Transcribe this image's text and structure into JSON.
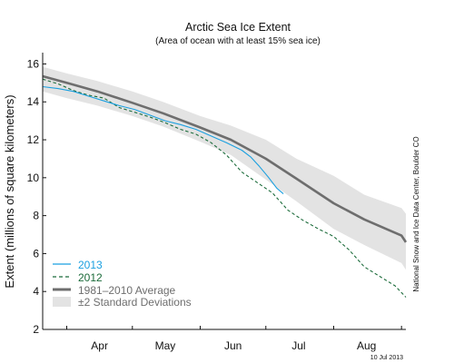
{
  "chart_data": {
    "type": "line",
    "title": "Arctic Sea Ice Extent",
    "subtitle": "(Area of ocean with at least 15% sea ice)",
    "ylabel": "Extent (millions of square kilometers)",
    "xlabel": "",
    "ylim": [
      2,
      16.5
    ],
    "yticks": [
      2,
      4,
      6,
      8,
      10,
      12,
      14,
      16
    ],
    "xlim": [
      "2013-03-21",
      "2013-09-03"
    ],
    "xtick_labels": [
      {
        "label": "Apr",
        "date": "2013-04-16"
      },
      {
        "label": "May",
        "date": "2013-05-16"
      },
      {
        "label": "Jun",
        "date": "2013-06-16"
      },
      {
        "label": "Jul",
        "date": "2013-07-16"
      },
      {
        "label": "Aug",
        "date": "2013-08-16"
      }
    ],
    "month_boundaries": [
      "2013-04-01",
      "2013-05-01",
      "2013-06-01",
      "2013-07-01",
      "2013-08-01",
      "2013-09-01"
    ],
    "series": [
      {
        "name": "2013",
        "color": "#1ba0e0",
        "style": "solid",
        "x": [
          "2013-03-21",
          "2013-03-28",
          "2013-04-04",
          "2013-04-11",
          "2013-04-18",
          "2013-04-25",
          "2013-05-02",
          "2013-05-09",
          "2013-05-16",
          "2013-05-23",
          "2013-05-30",
          "2013-06-06",
          "2013-06-13",
          "2013-06-20",
          "2013-06-24",
          "2013-06-28",
          "2013-07-02",
          "2013-07-06",
          "2013-07-09"
        ],
        "values": [
          14.8,
          14.7,
          14.55,
          14.3,
          14.05,
          13.8,
          13.6,
          13.3,
          13.0,
          12.8,
          12.55,
          12.2,
          11.85,
          11.45,
          11.1,
          10.6,
          10.05,
          9.45,
          9.15
        ]
      },
      {
        "name": "2012",
        "color": "#1b6b3a",
        "style": "dashed",
        "x": [
          "2013-03-21",
          "2013-03-28",
          "2013-04-04",
          "2013-04-11",
          "2013-04-18",
          "2013-04-25",
          "2013-05-02",
          "2013-05-09",
          "2013-05-16",
          "2013-05-23",
          "2013-05-30",
          "2013-06-06",
          "2013-06-13",
          "2013-06-20",
          "2013-06-27",
          "2013-07-04",
          "2013-07-11",
          "2013-07-18",
          "2013-07-25",
          "2013-08-01",
          "2013-08-08",
          "2013-08-15",
          "2013-08-22",
          "2013-08-29",
          "2013-09-03"
        ],
        "values": [
          15.2,
          14.95,
          14.6,
          14.35,
          14.2,
          13.7,
          13.45,
          13.2,
          12.9,
          12.55,
          12.3,
          11.85,
          11.2,
          10.3,
          9.75,
          9.2,
          8.3,
          7.75,
          7.3,
          6.9,
          6.2,
          5.3,
          4.8,
          4.3,
          3.7
        ]
      },
      {
        "name": "1981–2010 Average",
        "color": "#6e6e6e",
        "style": "solid-thick",
        "x": [
          "2013-03-21",
          "2013-04-01",
          "2013-04-15",
          "2013-05-01",
          "2013-05-15",
          "2013-06-01",
          "2013-06-15",
          "2013-07-01",
          "2013-07-15",
          "2013-08-01",
          "2013-08-15",
          "2013-09-01",
          "2013-09-03"
        ],
        "values": [
          15.35,
          15.0,
          14.55,
          13.95,
          13.4,
          12.65,
          12.0,
          11.0,
          9.95,
          8.65,
          7.8,
          6.95,
          6.6
        ]
      }
    ],
    "std_band": {
      "name": "±2 Standard Deviations",
      "color": "#e3e3e3",
      "x": [
        "2013-03-21",
        "2013-04-01",
        "2013-04-15",
        "2013-05-01",
        "2013-05-15",
        "2013-06-01",
        "2013-06-15",
        "2013-07-01",
        "2013-07-15",
        "2013-08-01",
        "2013-08-15",
        "2013-09-01",
        "2013-09-03"
      ],
      "upper": [
        15.85,
        15.5,
        15.1,
        14.55,
        14.0,
        13.25,
        12.75,
        12.0,
        11.0,
        10.1,
        9.1,
        8.4,
        8.1
      ],
      "lower": [
        14.55,
        14.2,
        13.8,
        13.25,
        12.7,
        11.9,
        11.2,
        9.9,
        8.75,
        7.3,
        6.45,
        5.5,
        5.15
      ]
    },
    "legend": {
      "placement": "bottom-left",
      "entries": [
        "2013",
        "2012",
        "1981–2010 Average",
        "±2 Standard Deviations"
      ]
    },
    "grid": false,
    "side_text": "National Snow and Ice Data Center, Boulder CO",
    "date_stamp": "10 Jul 2013"
  }
}
